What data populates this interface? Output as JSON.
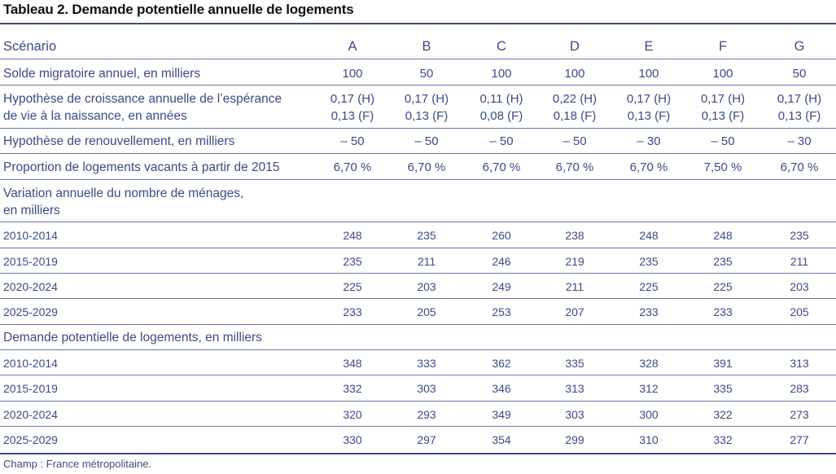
{
  "title": "Tableau 2. Demande potentielle annuelle de logements",
  "header": {
    "label": "Scénario",
    "scenarios": [
      "A",
      "B",
      "C",
      "D",
      "E",
      "F",
      "G"
    ]
  },
  "params": [
    {
      "label_lines": [
        "Solde migratoire annuel, en milliers"
      ],
      "values": [
        "100",
        "50",
        "100",
        "100",
        "100",
        "100",
        "50"
      ]
    },
    {
      "label_lines": [
        "Hypothèse de croissance annuelle de l’espérance",
        "de vie à la naissance, en années"
      ],
      "values_lines": [
        [
          "0,17 (H)",
          "0,13 (F)"
        ],
        [
          "0,17 (H)",
          "0,13 (F)"
        ],
        [
          "0,11 (H)",
          "0,08 (F)"
        ],
        [
          "0,22 (H)",
          "0,18 (F)"
        ],
        [
          "0,17 (H)",
          "0,13 (F)"
        ],
        [
          "0,17 (H)",
          "0,13 (F)"
        ],
        [
          "0,17 (H)",
          "0,13 (F)"
        ]
      ]
    },
    {
      "label_lines": [
        "Hypothèse de renouvellement, en milliers"
      ],
      "values": [
        "– 50",
        "– 50",
        "– 50",
        "– 50",
        "– 30",
        "– 50",
        "– 30"
      ]
    },
    {
      "label_lines": [
        "Proportion de logements vacants à partir de 2015"
      ],
      "values": [
        "6,70 %",
        "6,70 %",
        "6,70 %",
        "6,70 %",
        "6,70 %",
        "7,50 %",
        "6,70 %"
      ]
    }
  ],
  "sections": [
    {
      "title_lines": [
        "Variation annuelle du nombre de ménages,",
        "en milliers"
      ],
      "rows": [
        {
          "label": "2010-2014",
          "values": [
            "248",
            "235",
            "260",
            "238",
            "248",
            "248",
            "235"
          ]
        },
        {
          "label": "2015-2019",
          "values": [
            "235",
            "211",
            "246",
            "219",
            "235",
            "235",
            "211"
          ]
        },
        {
          "label": "2020-2024",
          "values": [
            "225",
            "203",
            "249",
            "211",
            "225",
            "225",
            "203"
          ]
        },
        {
          "label": "2025-2029",
          "values": [
            "233",
            "205",
            "253",
            "207",
            "233",
            "233",
            "205"
          ]
        }
      ]
    },
    {
      "title_lines": [
        "Demande potentielle de logements, en milliers"
      ],
      "rows": [
        {
          "label": "2010-2014",
          "values": [
            "348",
            "333",
            "362",
            "335",
            "328",
            "391",
            "313"
          ]
        },
        {
          "label": "2015-2019",
          "values": [
            "332",
            "303",
            "346",
            "313",
            "312",
            "335",
            "283"
          ]
        },
        {
          "label": "2020-2024",
          "values": [
            "320",
            "293",
            "349",
            "303",
            "300",
            "322",
            "273"
          ]
        },
        {
          "label": "2025-2029",
          "values": [
            "330",
            "297",
            "354",
            "299",
            "310",
            "332",
            "277"
          ]
        }
      ]
    }
  ],
  "footnote": "Champ : France métropolitaine."
}
